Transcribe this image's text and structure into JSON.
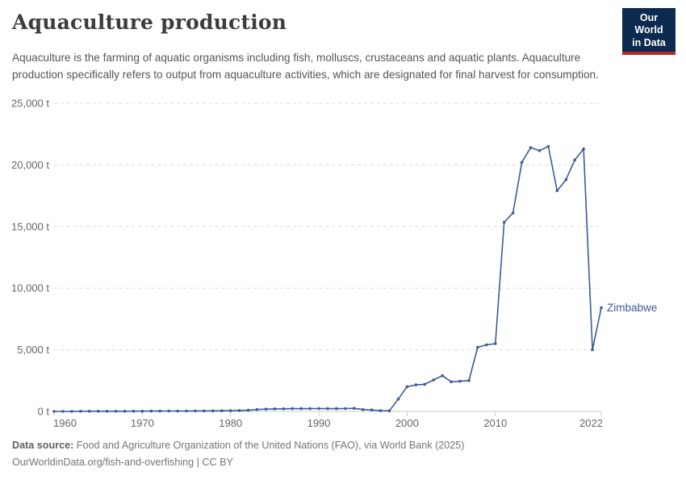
{
  "header": {
    "title": "Aquaculture production",
    "logo": {
      "line1": "Our World",
      "line2": "in Data"
    }
  },
  "subtitle": "Aquaculture is the farming of aquatic organisms including fish, molluscs, crustaceans and aquatic plants. Aquaculture production specifically refers to output from aquaculture activities, which are designated for final harvest for consumption.",
  "footer": {
    "source_label": "Data source:",
    "source_text": " Food and Agriculture Organization of the United Nations (FAO), via World Bank (2025)",
    "link_text": "OurWorldinData.org/fish-and-overfishing",
    "separator": " | ",
    "license_text": "CC BY"
  },
  "colors": {
    "line": "#3d5a96",
    "entity_label": "#3d5a96",
    "gridline": "#dcdcdc",
    "axis_line": "#c8c8c8",
    "tick_label": "#666666",
    "logo_bg": "#0c2a4e",
    "logo_stripe": "#b9272c"
  },
  "chart_data": {
    "type": "line",
    "title": "Aquaculture production",
    "entity": "Zimbabwe",
    "unit": "t",
    "x_range": [
      1960,
      2022
    ],
    "ylim": [
      0,
      25000
    ],
    "grid": "horizontal dashed",
    "legend_position": "line-end label",
    "x": [
      1960,
      1961,
      1962,
      1963,
      1964,
      1965,
      1966,
      1967,
      1968,
      1969,
      1970,
      1971,
      1972,
      1973,
      1974,
      1975,
      1976,
      1977,
      1978,
      1979,
      1980,
      1981,
      1982,
      1983,
      1984,
      1985,
      1986,
      1987,
      1988,
      1989,
      1990,
      1991,
      1992,
      1993,
      1994,
      1995,
      1996,
      1997,
      1998,
      1999,
      2000,
      2001,
      2002,
      2003,
      2004,
      2005,
      2006,
      2007,
      2008,
      2009,
      2010,
      2011,
      2012,
      2013,
      2014,
      2015,
      2016,
      2017,
      2018,
      2019,
      2020,
      2021,
      2022
    ],
    "values": [
      0,
      0,
      0,
      10,
      10,
      10,
      10,
      15,
      15,
      20,
      20,
      25,
      25,
      30,
      30,
      35,
      40,
      40,
      45,
      50,
      60,
      70,
      90,
      150,
      180,
      200,
      210,
      220,
      225,
      230,
      230,
      225,
      220,
      230,
      250,
      150,
      120,
      60,
      50,
      1000,
      2000,
      2150,
      2200,
      2550,
      2900,
      2400,
      2450,
      2500,
      5200,
      5400,
      5500,
      15350,
      16100,
      20200,
      21400,
      21150,
      21500,
      17900,
      18800,
      20400,
      21300,
      5000,
      8400
    ],
    "yticks": [
      0,
      5000,
      10000,
      15000,
      20000,
      25000
    ],
    "ytick_labels": [
      "0 t",
      "5,000 t",
      "10,000 t",
      "15,000 t",
      "20,000 t",
      "25,000 t"
    ],
    "xtick_labels": [
      "1960",
      "1970",
      "1980",
      "1990",
      "2000",
      "2010",
      "2022"
    ]
  }
}
